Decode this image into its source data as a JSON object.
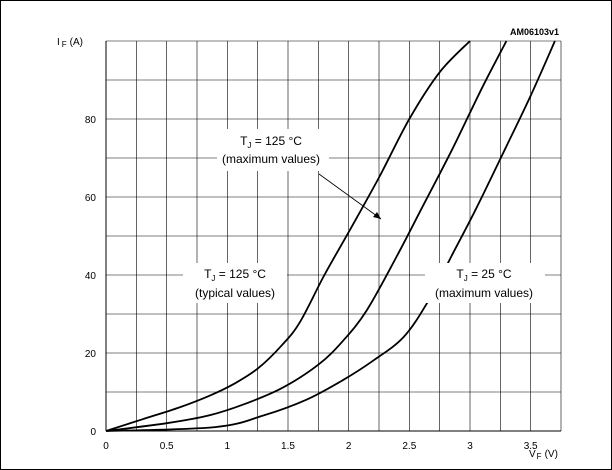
{
  "chart_data": {
    "type": "line",
    "figure_id": "AM06103v1",
    "y_axis_label": {
      "main": "I",
      "sub": "F",
      "unit": "(A)"
    },
    "x_axis_label": {
      "main": "V",
      "sub": "F",
      "unit": "(V)"
    },
    "xlim": [
      0,
      3.75
    ],
    "ylim": [
      0,
      100
    ],
    "x_ticks": [
      0,
      0.5,
      1,
      1.5,
      2,
      2.5,
      3,
      3.5
    ],
    "x_tick_labels": [
      "0",
      "0.5",
      "1",
      "1.5",
      "2",
      "2.5",
      "3",
      "3.5"
    ],
    "y_ticks": [
      0,
      20,
      40,
      60,
      80
    ],
    "y_tick_labels": [
      "0",
      "20",
      "40",
      "60",
      "80"
    ],
    "grid": true,
    "series": [
      {
        "label_main": "T",
        "label_sub": "J",
        "label_rest": " = 125 °C",
        "label_note": "(typical values)",
        "x": [
          0,
          0.3,
          0.6,
          0.85,
          1.05,
          1.25,
          1.45,
          1.6,
          1.8,
          2.0,
          2.25,
          2.5,
          2.75,
          3.0
        ],
        "y": [
          0,
          3,
          6,
          9,
          12,
          16,
          22,
          28,
          40,
          51,
          65,
          80,
          92,
          100
        ]
      },
      {
        "label_main": "T",
        "label_sub": "J",
        "label_rest": " = 125 °C",
        "label_note": "(maximum values)",
        "x": [
          0,
          0.5,
          0.85,
          1.15,
          1.45,
          1.75,
          1.95,
          2.15,
          2.4,
          2.6,
          2.85,
          3.1,
          3.3
        ],
        "y": [
          0,
          2,
          4,
          7,
          11,
          17,
          23,
          31,
          45,
          57,
          72,
          88,
          100
        ]
      },
      {
        "label_main": "T",
        "label_sub": "J",
        "label_rest": " = 25 °C",
        "label_note": "(maximum values)",
        "x": [
          0,
          0.9,
          1.3,
          1.65,
          1.95,
          2.2,
          2.45,
          2.65,
          2.85,
          3.05,
          3.3,
          3.5,
          3.7
        ],
        "y": [
          0,
          1,
          4,
          8,
          13,
          18,
          24,
          33,
          45,
          57,
          73,
          86,
          100
        ]
      }
    ]
  }
}
